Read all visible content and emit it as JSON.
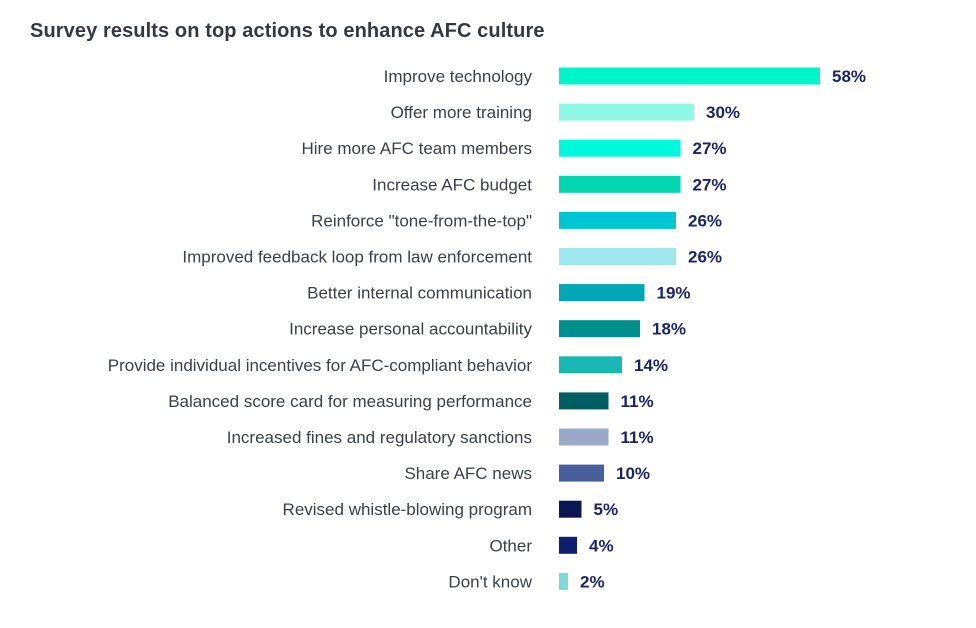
{
  "chart_data": {
    "type": "bar",
    "orientation": "horizontal",
    "title": "Survey results on top actions to enhance AFC culture",
    "xlabel": "",
    "ylabel": "",
    "xlim": [
      0,
      100
    ],
    "grid": false,
    "legend": "none",
    "value_suffix": "%",
    "categories": [
      "Improve technology",
      "Offer more training",
      "Hire more AFC team members",
      "Increase AFC budget",
      "Reinforce \"tone-from-the-top\"",
      "Improved feedback loop from law enforcement",
      "Better internal communication",
      "Increase personal accountability",
      "Provide individual incentives for AFC-compliant behavior",
      "Balanced score card for measuring performance",
      "Increased fines and regulatory sanctions",
      "Share AFC news",
      "Revised whistle-blowing program",
      "Other",
      "Don't know"
    ],
    "values": [
      58,
      30,
      27,
      27,
      26,
      26,
      19,
      18,
      14,
      11,
      11,
      10,
      5,
      4,
      2
    ],
    "value_labels": [
      "58%",
      "30%",
      "27%",
      "27%",
      "26%",
      "26%",
      "19%",
      "18%",
      "14%",
      "11%",
      "11%",
      "10%",
      "5%",
      "4%",
      "2%"
    ],
    "colors": [
      "#00f5c8",
      "#8ef7e6",
      "#00f8dc",
      "#00d7b0",
      "#00c6d4",
      "#9fe9ee",
      "#00a7b5",
      "#008f8f",
      "#1ab7b3",
      "#005e63",
      "#9ba9c9",
      "#4a5f9a",
      "#0b1750",
      "#0f1f6e",
      "#80d8d8"
    ],
    "value_label_color": "#1b2566"
  }
}
